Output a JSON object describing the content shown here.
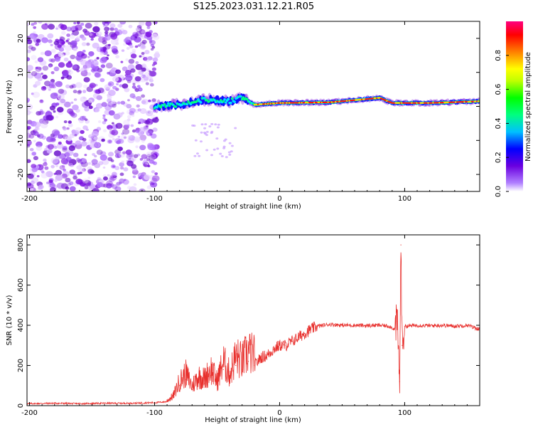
{
  "title": "S125.2023.031.12.21.R05",
  "chart_data": [
    {
      "type": "heatmap",
      "xlabel": "Height of straight line (km)",
      "ylabel": "Frequency (Hz)",
      "xlim": [
        -202,
        160
      ],
      "ylim": [
        -25,
        25
      ],
      "x_ticks": [
        -200,
        -100,
        0,
        100
      ],
      "x_tick_labels": [
        "-200",
        "-100",
        "0",
        "100"
      ],
      "y_ticks": [
        -20,
        -10,
        0,
        10,
        20
      ],
      "y_tick_labels": [
        "-20",
        "-10",
        "0",
        "10",
        "20"
      ],
      "colorbar": {
        "label": "Normalized spectral amplitude",
        "range": [
          0,
          1
        ],
        "ticks": [
          0.0,
          0.2,
          0.4,
          0.6,
          0.8
        ],
        "tick_labels": [
          "0.0",
          "0.2",
          "0.4",
          "0.6",
          "0.8"
        ],
        "colormap": [
          "#ffffff",
          "#7f00ff",
          "#0000ff",
          "#00ffff",
          "#00ff00",
          "#ffff00",
          "#ff8000",
          "#ff0000",
          "#ff0080"
        ]
      },
      "noise_region_x": [
        -202,
        -100
      ],
      "signal_band": [
        {
          "x": -100,
          "freq": 0.0
        },
        {
          "x": -80,
          "freq": 0.5
        },
        {
          "x": -60,
          "freq": 2.0
        },
        {
          "x": -40,
          "freq": 1.5
        },
        {
          "x": -30,
          "freq": 2.5
        },
        {
          "x": -20,
          "freq": 0.5
        },
        {
          "x": 0,
          "freq": 1.0
        },
        {
          "x": 40,
          "freq": 1.2
        },
        {
          "x": 80,
          "freq": 2.5
        },
        {
          "x": 90,
          "freq": 1.0
        },
        {
          "x": 120,
          "freq": 1.0
        },
        {
          "x": 160,
          "freq": 1.5
        }
      ]
    },
    {
      "type": "line",
      "xlabel": "Height of straight line (km)",
      "ylabel": "SNR (10 * v/v)",
      "xlim": [
        -202,
        160
      ],
      "ylim": [
        0,
        850
      ],
      "x_ticks": [
        -200,
        -100,
        0,
        100
      ],
      "x_tick_labels": [
        "-200",
        "-100",
        "0",
        "100"
      ],
      "y_ticks": [
        0,
        200,
        400,
        600,
        800
      ],
      "y_tick_labels": [
        "0",
        "200",
        "400",
        "600",
        "800"
      ],
      "color": "#e8302d",
      "x": [
        -202,
        -180,
        -160,
        -140,
        -120,
        -100,
        -90,
        -85,
        -80,
        -75,
        -70,
        -65,
        -60,
        -55,
        -50,
        -45,
        -40,
        -35,
        -30,
        -25,
        -20,
        -15,
        -10,
        -5,
        0,
        5,
        10,
        15,
        20,
        25,
        30,
        40,
        50,
        60,
        70,
        80,
        88,
        92,
        94,
        96,
        97,
        98,
        100,
        110,
        120,
        130,
        140,
        150,
        160
      ],
      "y": [
        10,
        12,
        10,
        12,
        12,
        15,
        20,
        40,
        100,
        130,
        80,
        120,
        110,
        150,
        100,
        180,
        130,
        200,
        180,
        220,
        200,
        240,
        250,
        280,
        300,
        300,
        320,
        340,
        360,
        380,
        395,
        405,
        400,
        400,
        398,
        400,
        395,
        380,
        420,
        120,
        800,
        300,
        395,
        400,
        398,
        400,
        396,
        400,
        380
      ]
    }
  ]
}
